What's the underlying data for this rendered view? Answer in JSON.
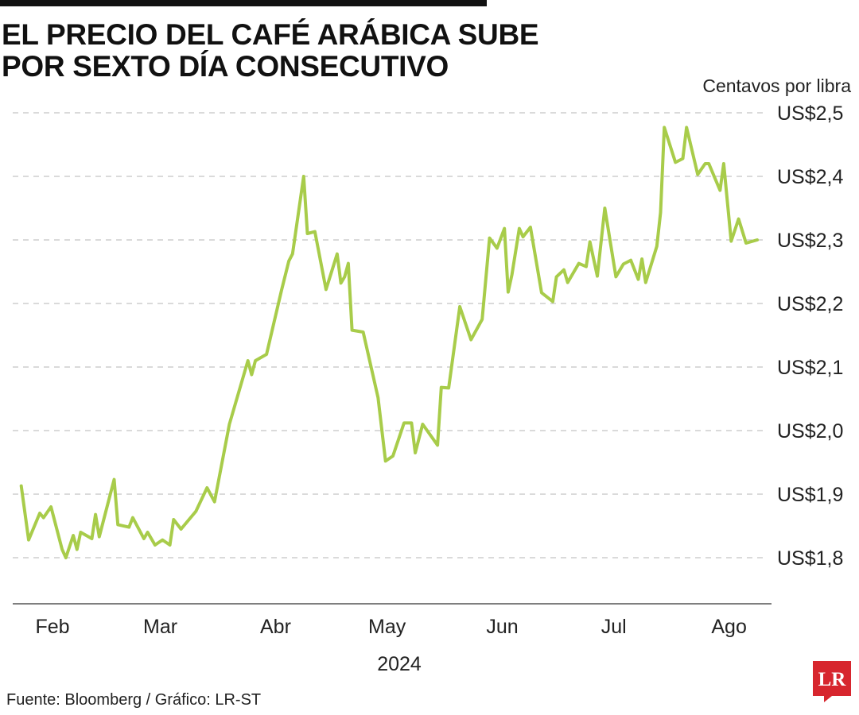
{
  "title_lines": [
    "EL PRECIO DEL CAFÉ ARÁBICA SUBE",
    "POR SEXTO DÍA CONSECUTIVO"
  ],
  "source": "Fuente: Bloomberg / Gráfico: LR-ST",
  "logo": {
    "text": "LR",
    "color": "#d7262e"
  },
  "chart_data": {
    "type": "line",
    "unit_label": "Centavos por libra",
    "year_label": "2024",
    "line_color": "#a8cc4a",
    "grid": true,
    "y_range": [
      1.8,
      2.5
    ],
    "y_ticks": [
      {
        "value": 2.5,
        "label": "US$2,5"
      },
      {
        "value": 2.4,
        "label": "US$2,4"
      },
      {
        "value": 2.3,
        "label": "US$2,3"
      },
      {
        "value": 2.2,
        "label": "US$2,2"
      },
      {
        "value": 2.1,
        "label": "US$2,1"
      },
      {
        "value": 2.0,
        "label": "US$2,0"
      },
      {
        "value": 1.9,
        "label": "US$1,9"
      },
      {
        "value": 1.8,
        "label": "US$1,8"
      }
    ],
    "x_range": [
      "2024-01-23",
      "2024-08-09"
    ],
    "x_ticks": [
      {
        "date": "2024-02-01",
        "label": "Feb"
      },
      {
        "date": "2024-03-01",
        "label": "Mar"
      },
      {
        "date": "2024-04-01",
        "label": "Abr"
      },
      {
        "date": "2024-05-01",
        "label": "May"
      },
      {
        "date": "2024-06-01",
        "label": "Jun"
      },
      {
        "date": "2024-07-01",
        "label": "Jul"
      },
      {
        "date": "2024-08-01",
        "label": "Ago"
      }
    ],
    "series": [
      {
        "points": [
          [
            "2024-01-24",
            1.913
          ],
          [
            "2024-01-26",
            1.828
          ],
          [
            "2024-01-29",
            1.87
          ],
          [
            "2024-01-30",
            1.863
          ],
          [
            "2024-02-01",
            1.88
          ],
          [
            "2024-02-04",
            1.813
          ],
          [
            "2024-02-05",
            1.8
          ],
          [
            "2024-02-07",
            1.835
          ],
          [
            "2024-02-08",
            1.813
          ],
          [
            "2024-02-09",
            1.84
          ],
          [
            "2024-02-12",
            1.83
          ],
          [
            "2024-02-13",
            1.868
          ],
          [
            "2024-02-14",
            1.833
          ],
          [
            "2024-02-18",
            1.923
          ],
          [
            "2024-02-19",
            1.852
          ],
          [
            "2024-02-22",
            1.848
          ],
          [
            "2024-02-23",
            1.863
          ],
          [
            "2024-02-26",
            1.83
          ],
          [
            "2024-02-27",
            1.84
          ],
          [
            "2024-02-29",
            1.82
          ],
          [
            "2024-03-02",
            1.828
          ],
          [
            "2024-03-04",
            1.82
          ],
          [
            "2024-03-05",
            1.86
          ],
          [
            "2024-03-07",
            1.845
          ],
          [
            "2024-03-11",
            1.873
          ],
          [
            "2024-03-14",
            1.91
          ],
          [
            "2024-03-16",
            1.888
          ],
          [
            "2024-03-20",
            2.01
          ],
          [
            "2024-03-25",
            2.11
          ],
          [
            "2024-03-26",
            2.088
          ],
          [
            "2024-03-27",
            2.11
          ],
          [
            "2024-03-30",
            2.12
          ],
          [
            "2024-04-03",
            2.22
          ],
          [
            "2024-04-05",
            2.267
          ],
          [
            "2024-04-06",
            2.278
          ],
          [
            "2024-04-09",
            2.4
          ],
          [
            "2024-04-10",
            2.31
          ],
          [
            "2024-04-12",
            2.313
          ],
          [
            "2024-04-15",
            2.222
          ],
          [
            "2024-04-18",
            2.278
          ],
          [
            "2024-04-19",
            2.232
          ],
          [
            "2024-04-20",
            2.242
          ],
          [
            "2024-04-21",
            2.263
          ],
          [
            "2024-04-22",
            2.158
          ],
          [
            "2024-04-25",
            2.155
          ],
          [
            "2024-04-29",
            2.052
          ],
          [
            "2024-05-01",
            1.952
          ],
          [
            "2024-05-03",
            1.96
          ],
          [
            "2024-05-06",
            2.012
          ],
          [
            "2024-05-08",
            2.012
          ],
          [
            "2024-05-09",
            1.965
          ],
          [
            "2024-05-11",
            2.01
          ],
          [
            "2024-05-15",
            1.977
          ],
          [
            "2024-05-16",
            2.068
          ],
          [
            "2024-05-18",
            2.067
          ],
          [
            "2024-05-21",
            2.195
          ],
          [
            "2024-05-24",
            2.143
          ],
          [
            "2024-05-27",
            2.175
          ],
          [
            "2024-05-29",
            2.303
          ],
          [
            "2024-05-31",
            2.287
          ],
          [
            "2024-06-02",
            2.318
          ],
          [
            "2024-06-03",
            2.218
          ],
          [
            "2024-06-04",
            2.245
          ],
          [
            "2024-06-06",
            2.318
          ],
          [
            "2024-06-07",
            2.305
          ],
          [
            "2024-06-09",
            2.32
          ],
          [
            "2024-06-12",
            2.217
          ],
          [
            "2024-06-15",
            2.203
          ],
          [
            "2024-06-16",
            2.242
          ],
          [
            "2024-06-18",
            2.253
          ],
          [
            "2024-06-19",
            2.233
          ],
          [
            "2024-06-22",
            2.263
          ],
          [
            "2024-06-24",
            2.258
          ],
          [
            "2024-06-25",
            2.297
          ],
          [
            "2024-06-27",
            2.243
          ],
          [
            "2024-06-29",
            2.35
          ],
          [
            "2024-07-02",
            2.242
          ],
          [
            "2024-07-04",
            2.262
          ],
          [
            "2024-07-06",
            2.268
          ],
          [
            "2024-07-08",
            2.238
          ],
          [
            "2024-07-09",
            2.27
          ],
          [
            "2024-07-10",
            2.233
          ],
          [
            "2024-07-13",
            2.29
          ],
          [
            "2024-07-14",
            2.343
          ],
          [
            "2024-07-15",
            2.477
          ],
          [
            "2024-07-18",
            2.422
          ],
          [
            "2024-07-20",
            2.428
          ],
          [
            "2024-07-21",
            2.477
          ],
          [
            "2024-07-24",
            2.403
          ],
          [
            "2024-07-26",
            2.42
          ],
          [
            "2024-07-27",
            2.42
          ],
          [
            "2024-07-30",
            2.378
          ],
          [
            "2024-07-31",
            2.42
          ],
          [
            "2024-08-02",
            2.298
          ],
          [
            "2024-08-04",
            2.333
          ],
          [
            "2024-08-06",
            2.295
          ],
          [
            "2024-08-09",
            2.3
          ]
        ]
      }
    ]
  }
}
